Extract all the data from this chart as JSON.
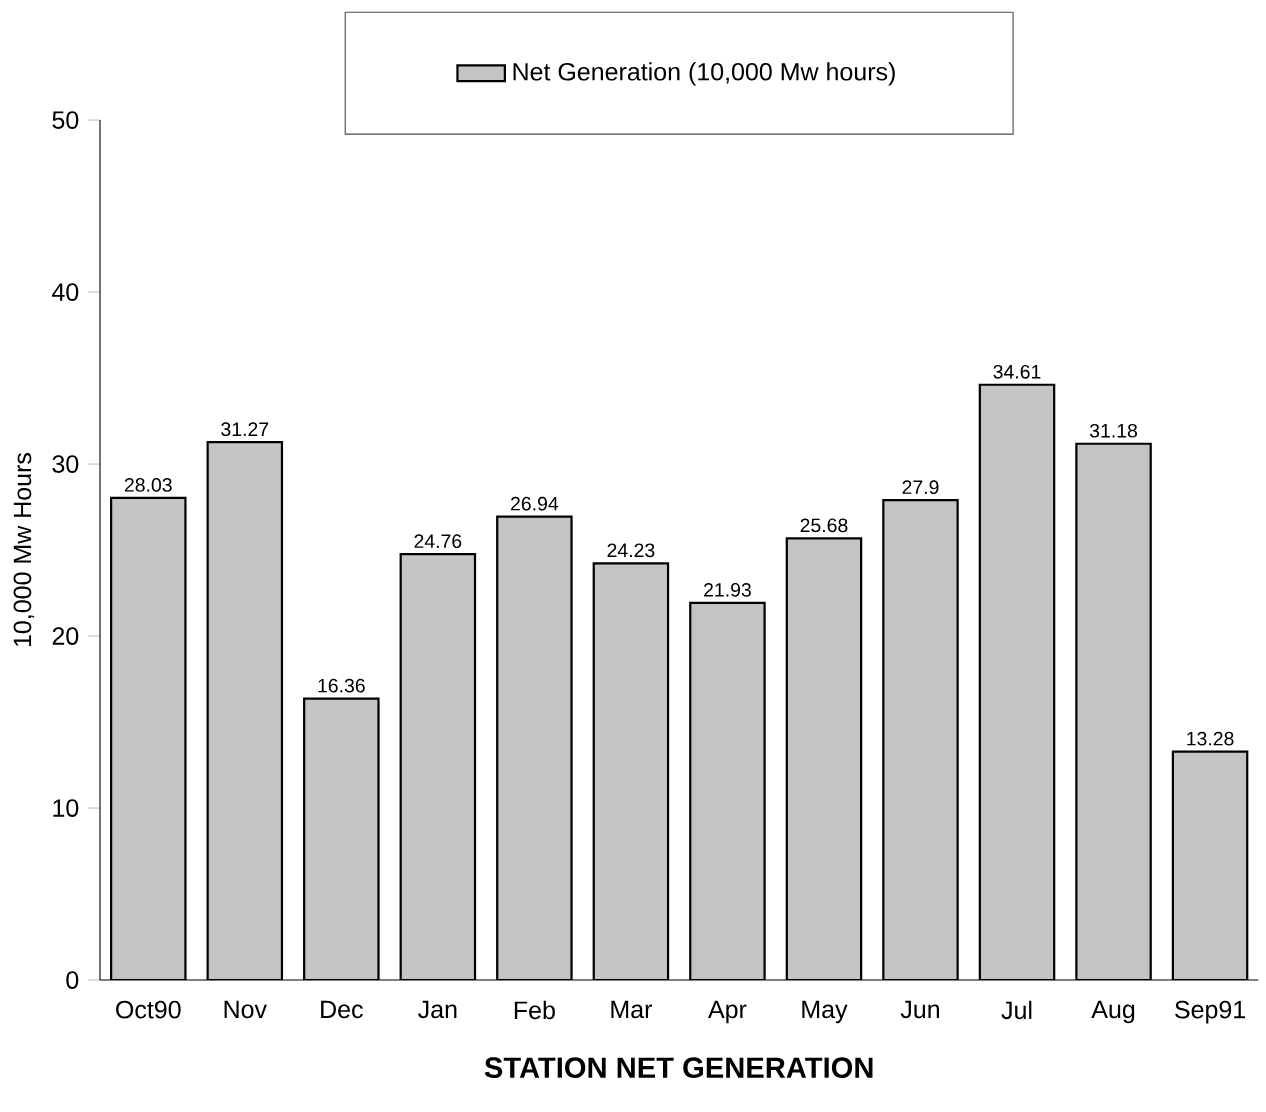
{
  "chart_data": {
    "type": "bar",
    "title": "STATION NET GENERATION",
    "ylabel": "10,000  Mw Hours",
    "categories": [
      "Oct90",
      "Nov",
      "Dec",
      "Jan",
      "Feb",
      "Mar",
      "Apr",
      "May",
      "Jun",
      "Jul",
      "Aug",
      "Sep91"
    ],
    "series": [
      {
        "name": "Net Generation  (10,000 Mw hours)",
        "color": "#c4c4c4",
        "values": [
          28.03,
          31.27,
          16.36,
          24.76,
          26.94,
          24.23,
          21.93,
          25.68,
          27.9,
          34.61,
          31.18,
          13.28
        ],
        "value_labels": [
          "28.03",
          "31.27",
          "16.36",
          "24.76",
          "26.94",
          "24.23",
          "21.93",
          "25.68",
          "27.9",
          "34.61",
          "31.18",
          "13.28"
        ]
      }
    ],
    "ylim": [
      0,
      50
    ],
    "yticks": [
      0,
      10,
      20,
      30,
      40,
      50
    ],
    "legend": "top",
    "grid": false
  }
}
